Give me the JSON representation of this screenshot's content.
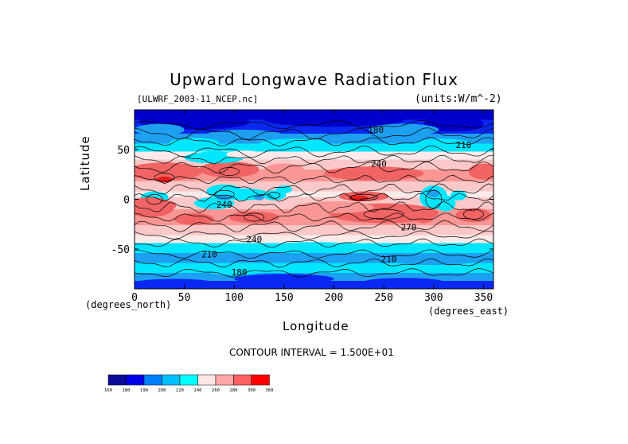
{
  "chart_data": {
    "type": "heatmap",
    "title": "Upward Longwave Radiation Flux",
    "source_label": "[ULWRF_2003-11_NCEP.nc]",
    "units_label": "(units:W/m^-2)",
    "xlabel": "Longitude",
    "ylabel": "Latitude",
    "x_unit_label": "(degrees_east)",
    "y_unit_label": "(degrees_north)",
    "contour_interval_label": "CONTOUR INTERVAL = 1.500E+01",
    "xlim": [
      0,
      360
    ],
    "ylim": [
      -90,
      90
    ],
    "x_ticks": [
      0,
      50,
      100,
      150,
      200,
      250,
      300,
      350
    ],
    "y_ticks": [
      50,
      0,
      -50
    ],
    "contour_labels": [
      {
        "text": "180",
        "lon": 242,
        "lat": 70
      },
      {
        "text": "210",
        "lon": 330,
        "lat": 55
      },
      {
        "text": "240",
        "lon": 245,
        "lat": 36
      },
      {
        "text": "240",
        "lon": 90,
        "lat": -5
      },
      {
        "text": "270",
        "lon": 275,
        "lat": -28
      },
      {
        "text": "240",
        "lon": 120,
        "lat": -40
      },
      {
        "text": "210",
        "lon": 75,
        "lat": -55
      },
      {
        "text": "210",
        "lon": 255,
        "lat": -60
      },
      {
        "text": "180",
        "lon": 105,
        "lat": -73
      }
    ],
    "colorbar": {
      "levels": [
        "160",
        "180",
        "190",
        "200",
        "220",
        "240",
        "260",
        "280",
        "300",
        "360"
      ],
      "colors": [
        "#0a0a9a",
        "#0000e6",
        "#0080ff",
        "#00c0ff",
        "#00ffff",
        "#ffe6e6",
        "#ffa8a8",
        "#ff6060",
        "#ff0000"
      ]
    },
    "field_colors": {
      "cold": "#0000cc",
      "c180": "#0a28f0",
      "c190": "#1ea0f0",
      "c200": "#00e6ff",
      "c220": "#faeaea",
      "c240": "#fac8c8",
      "c260": "#fa9696",
      "c280": "#f06464",
      "hot": "#e61e1e"
    }
  }
}
